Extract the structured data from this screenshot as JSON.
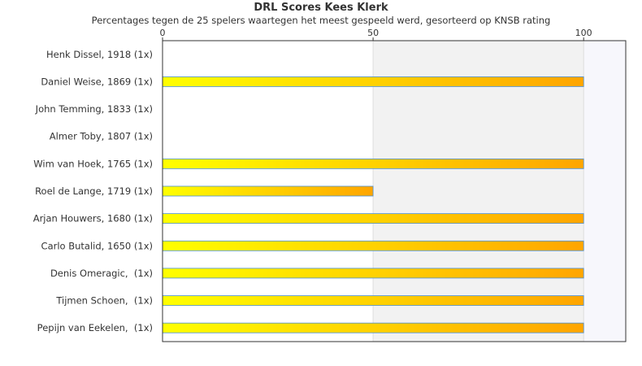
{
  "chart_data": {
    "type": "bar",
    "orientation": "horizontal",
    "title": "DRL Scores Kees Klerk",
    "subtitle": "Percentages tegen de 25 spelers waartegen het meest gespeeld werd, gesorteerd op KNSB rating",
    "categories": [
      "Henk Dissel, 1918 (1x)",
      "Daniel Weise, 1869 (1x)",
      "John Temming, 1833 (1x)",
      "Almer Toby, 1807 (1x)",
      "Wim van Hoek, 1765 (1x)",
      "Roel de Lange, 1719 (1x)",
      "Arjan Houwers, 1680 (1x)",
      "Carlo Butalid, 1650 (1x)",
      "Denis Omeragic,  (1x)",
      "Tijmen Schoen,  (1x)",
      "Pepijn van Eekelen,  (1x)"
    ],
    "values": [
      0,
      100,
      0,
      0,
      100,
      50,
      100,
      100,
      100,
      100,
      100
    ],
    "xlim": [
      0,
      110
    ],
    "xticks": [
      "0",
      "50",
      "100"
    ],
    "grid": true,
    "colors": {
      "bar_start": "#ffff00",
      "bar_end": "#ffa500",
      "bar_border": "#4a90d9",
      "band_light": "#ffffff",
      "band_mid": "#f2f2f2",
      "band_far": "#f7f7fc",
      "axis": "#333333",
      "grid": "#dddddd"
    }
  }
}
